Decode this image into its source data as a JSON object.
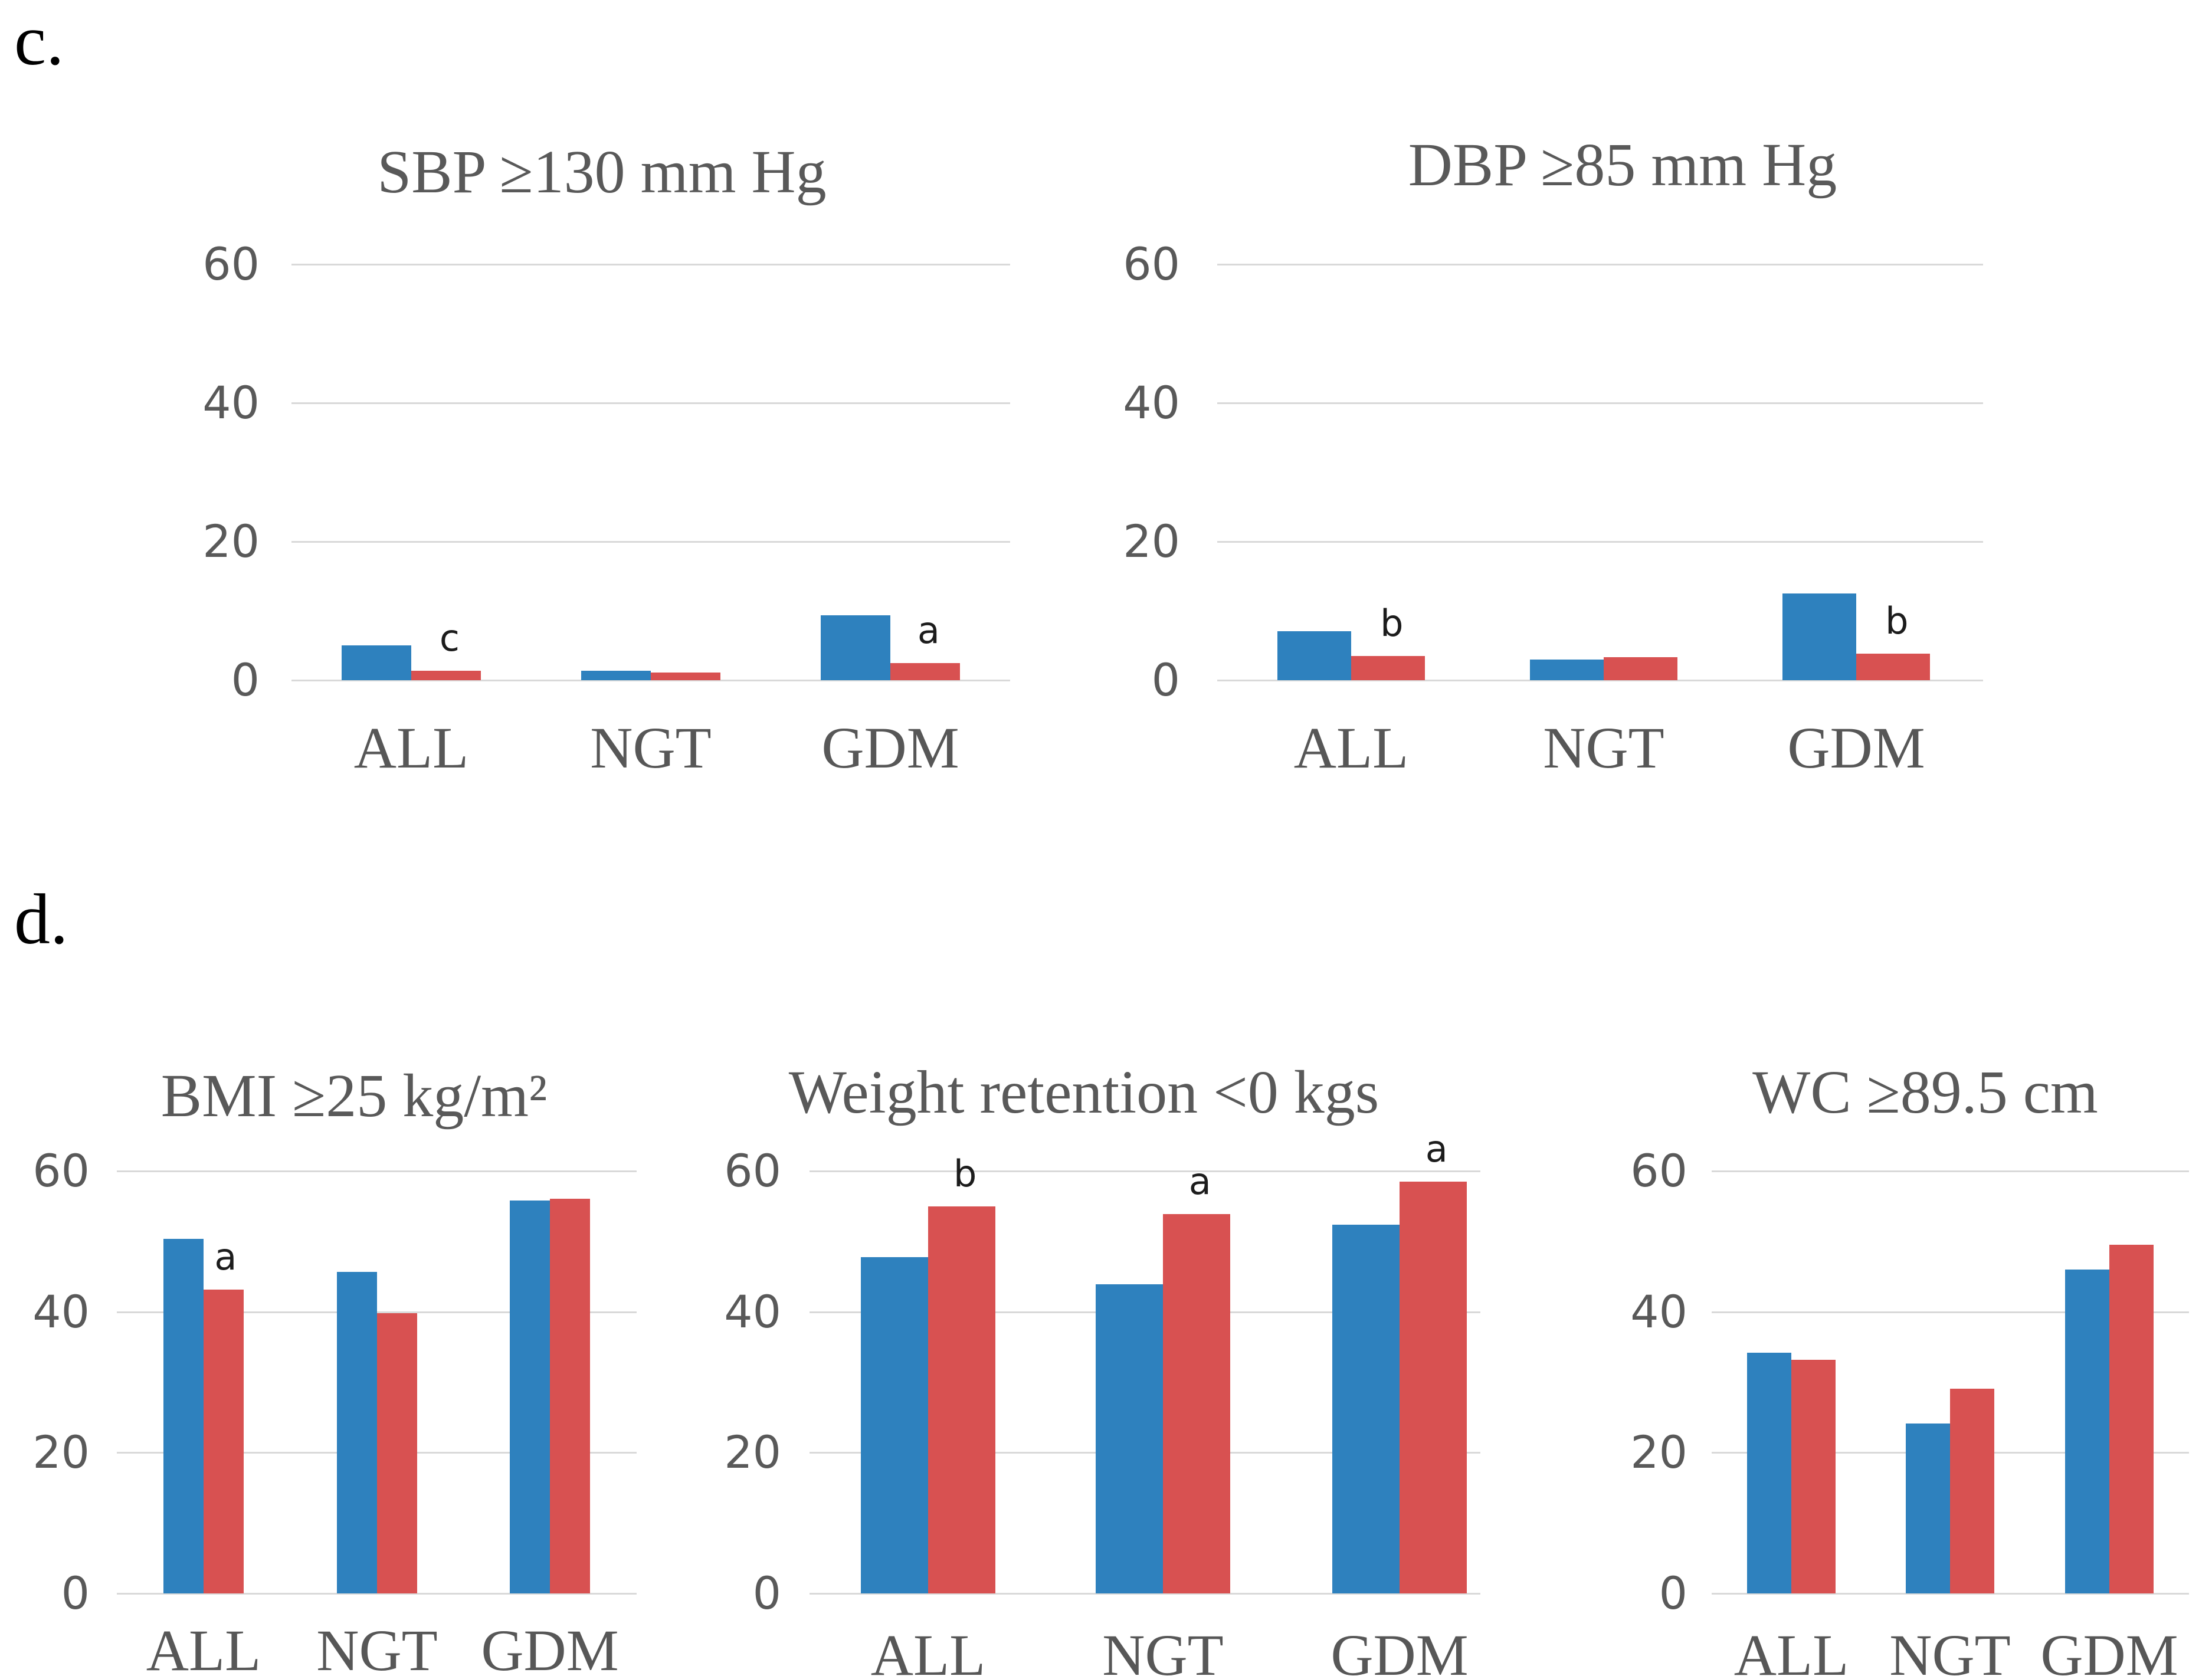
{
  "panels": {
    "c": {
      "label": "c."
    },
    "d": {
      "label": "d."
    }
  },
  "colors": {
    "blue_bar": "#2e81be",
    "red_bar": "#d85151",
    "gridline": "#d9d9d9",
    "axis_text": "#595959",
    "title_text": "#595959",
    "annotation_text": "#1c1c1c",
    "panel_letter": "#000000"
  },
  "chart_data": [
    {
      "id": "sbp",
      "panel": "c",
      "type": "bar",
      "title": "SBP ≥130 mm Hg",
      "categories": [
        "ALL",
        "NGT",
        "GDM"
      ],
      "series": [
        {
          "name": "blue",
          "color_key": "blue_bar",
          "values": [
            5.0,
            1.4,
            9.4
          ]
        },
        {
          "name": "red",
          "color_key": "red_bar",
          "values": [
            1.4,
            1.1,
            2.5
          ]
        }
      ],
      "annotations": [
        {
          "category": "ALL",
          "series": "red",
          "text": "c"
        },
        {
          "category": "GDM",
          "series": "red",
          "text": "a"
        }
      ],
      "ylim": [
        0,
        60
      ],
      "yticks": [
        60,
        40,
        20,
        0
      ],
      "grid": "horizontal",
      "legend": "none"
    },
    {
      "id": "dbp",
      "panel": "c",
      "type": "bar",
      "title": "DBP ≥85 mm Hg",
      "categories": [
        "ALL",
        "NGT",
        "GDM"
      ],
      "series": [
        {
          "name": "blue",
          "color_key": "blue_bar",
          "values": [
            7.1,
            3.0,
            12.5
          ]
        },
        {
          "name": "red",
          "color_key": "red_bar",
          "values": [
            3.5,
            3.3,
            3.8
          ]
        }
      ],
      "annotations": [
        {
          "category": "ALL",
          "series": "red",
          "text": "b"
        },
        {
          "category": "GDM",
          "series": "red",
          "text": "b"
        }
      ],
      "ylim": [
        0,
        60
      ],
      "yticks": [
        60,
        40,
        20,
        0
      ],
      "grid": "horizontal",
      "legend": "none"
    },
    {
      "id": "bmi",
      "panel": "d",
      "type": "bar",
      "title": "BMI ≥25 kg/m²",
      "categories": [
        "ALL",
        "NGT",
        "GDM"
      ],
      "series": [
        {
          "name": "blue",
          "color_key": "blue_bar",
          "values": [
            50.4,
            45.7,
            55.8
          ]
        },
        {
          "name": "red",
          "color_key": "red_bar",
          "values": [
            43.2,
            39.8,
            56.1
          ]
        }
      ],
      "annotations": [
        {
          "category": "ALL",
          "series": "red",
          "text": "a"
        }
      ],
      "ylim": [
        0,
        60
      ],
      "yticks": [
        60,
        40,
        20,
        0
      ],
      "grid": "horizontal",
      "legend": "none"
    },
    {
      "id": "wr",
      "panel": "d",
      "type": "bar",
      "title": "Weight retention <0 kgs",
      "categories": [
        "ALL",
        "NGT",
        "GDM"
      ],
      "series": [
        {
          "name": "blue",
          "color_key": "blue_bar",
          "values": [
            47.8,
            43.9,
            52.4
          ]
        },
        {
          "name": "red",
          "color_key": "red_bar",
          "values": [
            55.0,
            53.9,
            58.5
          ]
        }
      ],
      "annotations": [
        {
          "category": "ALL",
          "series": "red",
          "text": "b"
        },
        {
          "category": "NGT",
          "series": "red",
          "text": "a"
        },
        {
          "category": "GDM",
          "series": "red",
          "text": "a"
        }
      ],
      "ylim": [
        0,
        60
      ],
      "yticks": [
        60,
        40,
        20,
        0
      ],
      "grid": "horizontal",
      "legend": "none"
    },
    {
      "id": "wc",
      "panel": "d",
      "type": "bar",
      "title": "WC ≥89.5 cm",
      "categories": [
        "ALL",
        "NGT",
        "GDM"
      ],
      "series": [
        {
          "name": "blue",
          "color_key": "blue_bar",
          "values": [
            34.2,
            24.1,
            46.0
          ]
        },
        {
          "name": "red",
          "color_key": "red_bar",
          "values": [
            33.2,
            29.1,
            49.5
          ]
        }
      ],
      "annotations": [],
      "ylim": [
        0,
        60
      ],
      "yticks": [
        60,
        40,
        20,
        0
      ],
      "grid": "horizontal",
      "legend": "none"
    }
  ]
}
